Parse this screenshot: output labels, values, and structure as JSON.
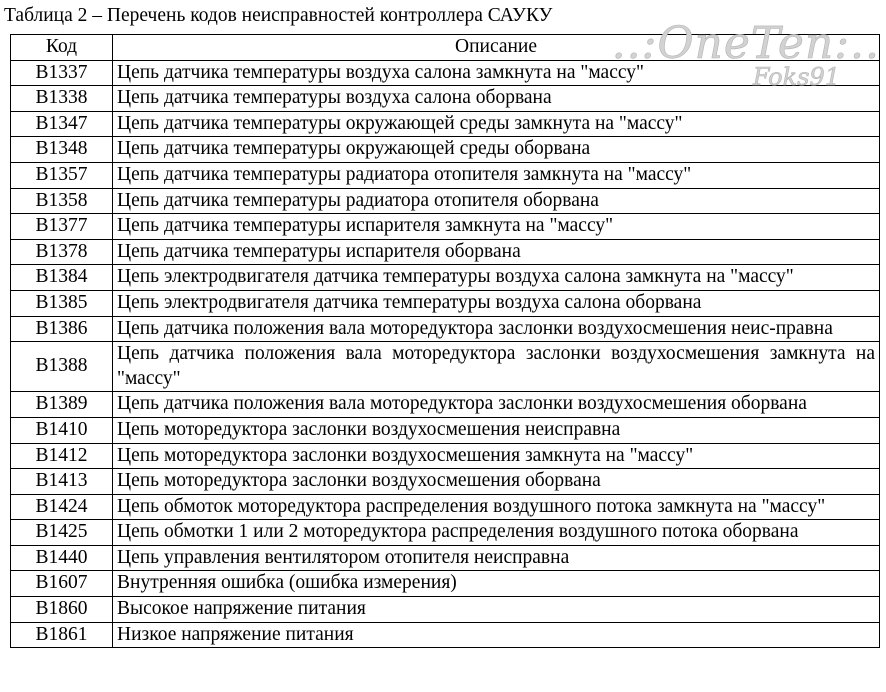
{
  "caption": "Таблица 2 – Перечень кодов неисправностей контроллера САУКУ",
  "watermark": {
    "line1": "..:OneTen:..",
    "line2": "Foks91"
  },
  "table": {
    "headers": [
      "Код",
      "Описание"
    ],
    "rows": [
      {
        "code": "B1337",
        "desc": "Цепь датчика температуры воздуха салона замкнута на \"массу\""
      },
      {
        "code": "B1338",
        "desc": "Цепь датчика температуры воздуха салона оборвана"
      },
      {
        "code": "B1347",
        "desc": "Цепь датчика температуры окружающей среды замкнута на \"массу\""
      },
      {
        "code": "B1348",
        "desc": "Цепь датчика температуры окружающей среды оборвана"
      },
      {
        "code": "B1357",
        "desc": "Цепь датчика температуры радиатора отопителя замкнута на \"массу\""
      },
      {
        "code": "B1358",
        "desc": "Цепь датчика температуры радиатора отопителя оборвана"
      },
      {
        "code": "B1377",
        "desc": "Цепь датчика температуры испарителя замкнута на \"массу\""
      },
      {
        "code": "B1378",
        "desc": "Цепь датчика температуры испарителя оборвана"
      },
      {
        "code": "B1384",
        "desc": "Цепь электродвигателя датчика температуры воздуха салона замкнута на \"массу\""
      },
      {
        "code": "B1385",
        "desc": "Цепь электродвигателя датчика температуры воздуха салона оборвана"
      },
      {
        "code": "B1386",
        "desc": "Цепь датчика положения вала моторедуктора заслонки воздухосмешения неис-правна"
      },
      {
        "code": "B1388",
        "desc": "Цепь датчика положения вала моторедуктора заслонки воздухосмешения замкнута на \"массу\""
      },
      {
        "code": "B1389",
        "desc": "Цепь датчика положения вала моторедуктора заслонки воздухосмешения оборвана"
      },
      {
        "code": "B1410",
        "desc": "Цепь моторедуктора заслонки воздухосмешения неисправна"
      },
      {
        "code": "B1412",
        "desc": "Цепь моторедуктора заслонки воздухосмешения замкнута на \"массу\""
      },
      {
        "code": "B1413",
        "desc": "Цепь моторедуктора заслонки воздухосмешения оборвана"
      },
      {
        "code": "B1424",
        "desc": "Цепь обмоток моторедуктора распределения воздушного потока  замкнута на \"массу\""
      },
      {
        "code": "B1425",
        "desc": "Цепь обмотки 1 или 2 моторедуктора распределения воздушного потока  оборвана"
      },
      {
        "code": "B1440",
        "desc": "Цепь управления вентилятором отопителя неисправна"
      },
      {
        "code": "B1607",
        "desc": "Внутренняя ошибка (ошибка измерения)"
      },
      {
        "code": "B1860",
        "desc": "Высокое напряжение питания"
      },
      {
        "code": "B1861",
        "desc": "Низкое напряжение питания"
      }
    ]
  }
}
